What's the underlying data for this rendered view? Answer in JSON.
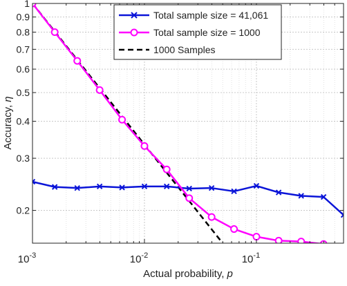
{
  "chart_data": {
    "type": "line",
    "xlabel_main": "Actual probability, ",
    "xlabel_var": "p",
    "ylabel_main": "Accuracy, ",
    "ylabel_var": "η",
    "x_scale": "log",
    "x_reversed": true,
    "xlim": [
      0.001,
      0.6
    ],
    "y_scale": "log",
    "ylim": [
      0.155,
      1.0
    ],
    "grid": true,
    "legend_position": "top-right",
    "x_ticks": [
      {
        "value": 0.001,
        "base": "10",
        "exp": "-3"
      },
      {
        "value": 0.01,
        "base": "10",
        "exp": "-2"
      },
      {
        "value": 0.1,
        "base": "10",
        "exp": "-1"
      }
    ],
    "y_ticks": [
      {
        "value": 1.0,
        "label": "1"
      },
      {
        "value": 0.9,
        "label": "0.9"
      },
      {
        "value": 0.8,
        "label": "0.8"
      },
      {
        "value": 0.7,
        "label": "0.7"
      },
      {
        "value": 0.6,
        "label": "0.6"
      },
      {
        "value": 0.5,
        "label": "0.5"
      },
      {
        "value": 0.4,
        "label": "0.4"
      },
      {
        "value": 0.3,
        "label": "0.3"
      },
      {
        "value": 0.2,
        "label": "0.2"
      }
    ],
    "series": [
      {
        "name": "Total sample size = 41,061",
        "color": "#0a14d8",
        "marker": "x",
        "line": "solid",
        "x": [
          0.001,
          0.00158,
          0.00251,
          0.00398,
          0.00631,
          0.01,
          0.0158,
          0.0251,
          0.0398,
          0.0631,
          0.1,
          0.158,
          0.251,
          0.398,
          0.6
        ],
        "y": [
          0.25,
          0.24,
          0.238,
          0.241,
          0.239,
          0.241,
          0.241,
          0.237,
          0.238,
          0.232,
          0.242,
          0.23,
          0.224,
          0.222,
          0.193
        ]
      },
      {
        "name": "Total sample size = 1000",
        "color": "#ff00ff",
        "marker": "o",
        "line": "solid",
        "x": [
          0.001,
          0.00158,
          0.00251,
          0.00398,
          0.00631,
          0.01,
          0.0158,
          0.0251,
          0.0398,
          0.0631,
          0.1,
          0.158,
          0.251,
          0.398,
          0.6
        ],
        "y": [
          1.0,
          0.8,
          0.64,
          0.51,
          0.405,
          0.33,
          0.275,
          0.22,
          0.19,
          0.173,
          0.163,
          0.158,
          0.157,
          0.154,
          0.148
        ]
      },
      {
        "name": "1000 Samples",
        "color": "#000000",
        "marker": "none",
        "line": "dashed",
        "x": [
          0.001,
          0.06
        ],
        "y": [
          1.0,
          0.142
        ]
      }
    ]
  }
}
